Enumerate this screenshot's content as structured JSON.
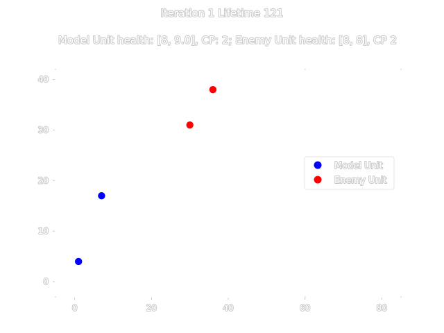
{
  "chart_data": {
    "type": "scatter",
    "title": "Iteration 1 Lifetime 121",
    "subtitle": "Model Unit health: [8, 9.0], CP: 2; Enemy Unit health: [8, 8], CP 2",
    "xlabel": "",
    "ylabel": "",
    "xlim": [
      -5,
      85
    ],
    "ylim": [
      -3,
      42
    ],
    "xticks": [
      0,
      20,
      40,
      60,
      80
    ],
    "yticks": [
      0,
      10,
      20,
      30,
      40
    ],
    "grid": false,
    "legend_position": "right",
    "series": [
      {
        "name": "Model Unit",
        "color": "#0000ff",
        "points": [
          [
            1,
            4
          ],
          [
            7,
            17
          ]
        ]
      },
      {
        "name": "Enemy Unit",
        "color": "#ff0000",
        "points": [
          [
            30,
            31
          ],
          [
            36,
            38
          ]
        ]
      }
    ]
  }
}
